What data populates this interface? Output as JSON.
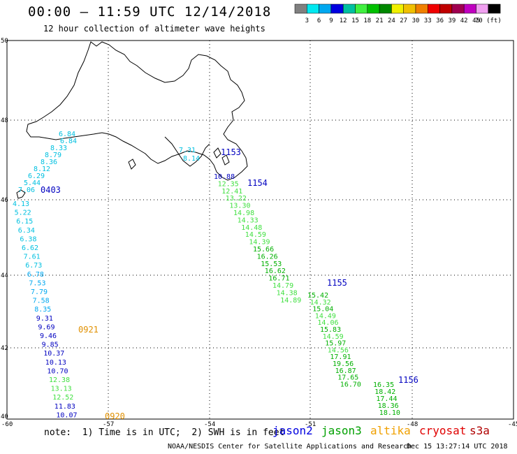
{
  "header": {
    "title": "00:00 – 11:59 UTC 12/14/2018",
    "subtitle": "12 hour collection of altimeter wave heights"
  },
  "color_scale": {
    "labels": [
      "3",
      "6",
      "9",
      "12",
      "15",
      "18",
      "21",
      "24",
      "27",
      "30",
      "33",
      "36",
      "39",
      "42",
      "45",
      "70 (ft)"
    ],
    "colors": [
      "#808080",
      "#00e8f0",
      "#00a8f0",
      "#0000e0",
      "#00c0a0",
      "#40f040",
      "#00c000",
      "#008800",
      "#f0f000",
      "#f0c000",
      "#f08000",
      "#f00000",
      "#c00000",
      "#a00050",
      "#c000c0",
      "#f0a0f0",
      "#000000"
    ]
  },
  "map": {
    "lat_labels": [
      "50",
      "48",
      "46",
      "44",
      "42",
      "40"
    ],
    "lon_labels": [
      "-60",
      "-57",
      "-54",
      "-51",
      "-48",
      "-45"
    ]
  },
  "passes": [
    {
      "label": "0403",
      "label_color": "#0000c0",
      "points": [
        {
          "v": "6.84",
          "c": "#00c0e0"
        },
        {
          "v": "6.84",
          "c": "#00c0e0"
        },
        {
          "v": "8.33",
          "c": "#00c0e0"
        },
        {
          "v": "8.79",
          "c": "#00c0e0"
        },
        {
          "v": "8.36",
          "c": "#00c0e0"
        },
        {
          "v": "8.12",
          "c": "#00c0e0"
        },
        {
          "v": "6.29",
          "c": "#00c0e0"
        },
        {
          "v": "5.44",
          "c": "#00c0e0"
        },
        {
          "v": "7.06",
          "c": "#00c0e0"
        }
      ]
    },
    {
      "label": "0921",
      "label_color": "#e09000",
      "points": [
        {
          "v": "4.13",
          "c": "#00c0e0"
        },
        {
          "v": "5.22",
          "c": "#00c0e0"
        },
        {
          "v": "6.15",
          "c": "#00c0e0"
        },
        {
          "v": "6.34",
          "c": "#00c0e0"
        },
        {
          "v": "6.38",
          "c": "#00c0e0"
        },
        {
          "v": "6.62",
          "c": "#00c0e0"
        },
        {
          "v": "7.61",
          "c": "#00c0e0"
        },
        {
          "v": "6.73",
          "c": "#00c0e0"
        },
        {
          "v": "6.78",
          "c": "#00a8f0"
        },
        {
          "v": "7.53",
          "c": "#00a8f0"
        },
        {
          "v": "7.79",
          "c": "#00a8f0"
        },
        {
          "v": "7.58",
          "c": "#00a8f0"
        },
        {
          "v": "8.35",
          "c": "#00a8f0"
        },
        {
          "v": "9.31",
          "c": "#0000c0"
        },
        {
          "v": "9.69",
          "c": "#0000c0"
        },
        {
          "v": "9.46",
          "c": "#0000c0"
        },
        {
          "v": "9.85",
          "c": "#0000c0"
        },
        {
          "v": "10.37",
          "c": "#0000c0"
        },
        {
          "v": "10.13",
          "c": "#0000c0"
        },
        {
          "v": "10.70",
          "c": "#0000c0"
        },
        {
          "v": "12.38",
          "c": "#40e040"
        },
        {
          "v": "13.13",
          "c": "#40e040"
        },
        {
          "v": "12.52",
          "c": "#40e040"
        },
        {
          "v": "11.83",
          "c": "#0000c0"
        },
        {
          "v": "10.07",
          "c": "#0000c0"
        }
      ]
    },
    {
      "label": "0920",
      "label_color": "#e09000",
      "points": []
    },
    {
      "label": "1153",
      "label_color": "#0000c0",
      "points": [
        {
          "v": "7.31",
          "c": "#00c0e0"
        },
        {
          "v": "8.14",
          "c": "#00c0e0"
        }
      ]
    },
    {
      "label": "1154",
      "label_color": "#0000c0",
      "points": [
        {
          "v": "10.88",
          "c": "#0000c0"
        },
        {
          "v": "12.35",
          "c": "#40e040"
        },
        {
          "v": "12.41",
          "c": "#40e040"
        },
        {
          "v": "13.22",
          "c": "#40e040"
        },
        {
          "v": "13.30",
          "c": "#40e040"
        },
        {
          "v": "14.98",
          "c": "#40e040"
        },
        {
          "v": "14.33",
          "c": "#40e040"
        },
        {
          "v": "14.48",
          "c": "#40e040"
        },
        {
          "v": "14.59",
          "c": "#40e040"
        },
        {
          "v": "14.39",
          "c": "#40e040"
        },
        {
          "v": "15.66",
          "c": "#00b000"
        },
        {
          "v": "16.26",
          "c": "#00b000"
        },
        {
          "v": "15.53",
          "c": "#00b000"
        },
        {
          "v": "16.62",
          "c": "#00b000"
        },
        {
          "v": "16.71",
          "c": "#00b000"
        },
        {
          "v": "14.79",
          "c": "#40e040"
        },
        {
          "v": "14.38",
          "c": "#40e040"
        },
        {
          "v": "14.89",
          "c": "#40e040"
        }
      ]
    },
    {
      "label": "1155",
      "label_color": "#0000c0",
      "points": [
        {
          "v": "15.42",
          "c": "#00b000"
        },
        {
          "v": "14.32",
          "c": "#40e040"
        },
        {
          "v": "15.04",
          "c": "#00b000"
        },
        {
          "v": "14.49",
          "c": "#40e040"
        },
        {
          "v": "14.06",
          "c": "#40e040"
        },
        {
          "v": "15.83",
          "c": "#00b000"
        },
        {
          "v": "14.59",
          "c": "#40e040"
        },
        {
          "v": "15.97",
          "c": "#00b000"
        },
        {
          "v": "14.56",
          "c": "#40e040"
        },
        {
          "v": "17.91",
          "c": "#00b000"
        },
        {
          "v": "19.56",
          "c": "#00b000"
        },
        {
          "v": "16.87",
          "c": "#00b000"
        },
        {
          "v": "17.65",
          "c": "#00b000"
        },
        {
          "v": "16.70",
          "c": "#00b000"
        }
      ]
    },
    {
      "label": "1156",
      "label_color": "#0000c0",
      "points": [
        {
          "v": "16.35",
          "c": "#00b000"
        },
        {
          "v": "18.42",
          "c": "#00b000"
        },
        {
          "v": "17.44",
          "c": "#00b000"
        },
        {
          "v": "18.36",
          "c": "#00b000"
        },
        {
          "v": "18.10",
          "c": "#00b000"
        }
      ]
    }
  ],
  "notes": {
    "text": "note:  1) Time is in UTC;  2) SWH is in feet"
  },
  "satellites": [
    {
      "name": "jason2",
      "color": "#0000e0"
    },
    {
      "name": "jason3",
      "color": "#00a000"
    },
    {
      "name": "altika",
      "color": "#f0a000"
    },
    {
      "name": "cryosat",
      "color": "#e00000"
    },
    {
      "name": "s3a",
      "color": "#b00000"
    }
  ],
  "footer": {
    "credit": "NOAA/NESDIS Center for Satellite Applications and Research",
    "timestamp": "Dec 15 13:27:14 UTC 2018"
  }
}
